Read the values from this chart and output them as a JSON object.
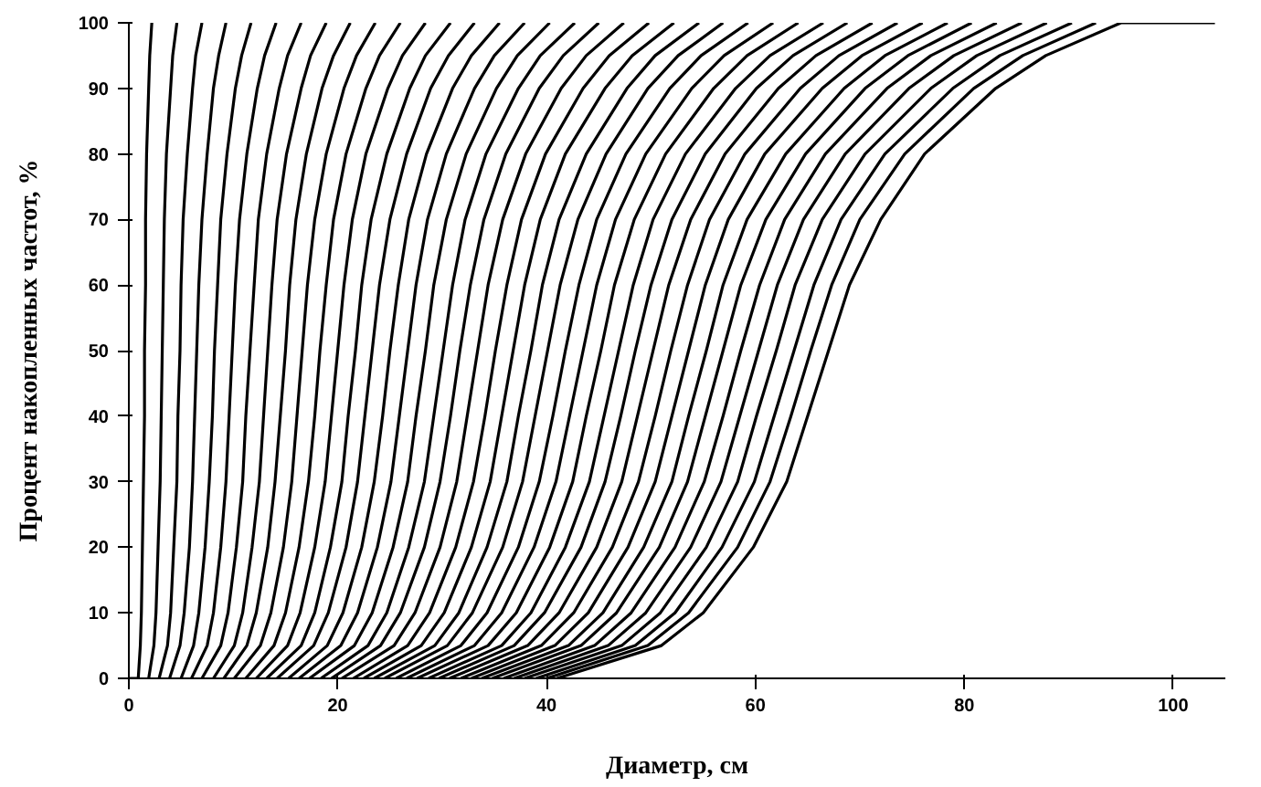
{
  "chart_data": {
    "type": "line",
    "xlabel": "Диаметр, см",
    "ylabel": "Процент накопленных частот, %",
    "xlim": [
      0,
      105
    ],
    "ylim": [
      0,
      100
    ],
    "xticks": [
      0,
      20,
      40,
      60,
      80,
      100
    ],
    "yticks": [
      0,
      10,
      20,
      30,
      40,
      50,
      60,
      70,
      80,
      90,
      100
    ],
    "grid": false,
    "marker": "none",
    "line_style": "solid",
    "series": [
      {
        "color": "#000000",
        "x": [
          0,
          0.9,
          1.1,
          1.2,
          1.3,
          1.4,
          1.5,
          1.5,
          1.6,
          1.6,
          1.7,
          1.9,
          2.0,
          2.2
        ],
        "values": [
          0,
          0,
          5,
          10,
          20,
          30,
          40,
          50,
          60,
          70,
          80,
          90,
          95,
          100
        ]
      },
      {
        "color": "#000000",
        "x": [
          1.9,
          2.4,
          2.6,
          2.8,
          3.0,
          3.1,
          3.2,
          3.3,
          3.4,
          3.6,
          4.0,
          4.2,
          4.6
        ],
        "values": [
          0,
          5,
          10,
          20,
          30,
          40,
          50,
          60,
          70,
          80,
          90,
          95,
          100
        ]
      },
      {
        "color": "#000000",
        "x": [
          2.9,
          3.7,
          4.0,
          4.3,
          4.6,
          4.7,
          4.9,
          5.0,
          5.2,
          5.6,
          6.1,
          6.4,
          7.0
        ],
        "values": [
          0,
          5,
          10,
          20,
          30,
          40,
          50,
          60,
          70,
          80,
          90,
          95,
          100
        ]
      },
      {
        "color": "#000000",
        "x": [
          3.9,
          4.9,
          5.3,
          5.8,
          6.1,
          6.3,
          6.5,
          6.7,
          7.0,
          7.5,
          8.1,
          8.6,
          9.3
        ],
        "values": [
          0,
          5,
          10,
          20,
          30,
          40,
          50,
          60,
          70,
          80,
          90,
          95,
          100
        ]
      },
      {
        "color": "#000000",
        "x": [
          5.0,
          6.2,
          6.7,
          7.3,
          7.7,
          8.0,
          8.2,
          8.5,
          8.8,
          9.4,
          10.2,
          10.8,
          11.7
        ],
        "values": [
          0,
          5,
          10,
          20,
          30,
          40,
          50,
          60,
          70,
          80,
          90,
          95,
          100
        ]
      },
      {
        "color": "#000000",
        "x": [
          6.0,
          7.5,
          8.1,
          8.8,
          9.3,
          9.6,
          9.9,
          10.2,
          10.6,
          11.3,
          12.3,
          13.0,
          14.1
        ],
        "values": [
          0,
          5,
          10,
          20,
          30,
          40,
          50,
          60,
          70,
          80,
          90,
          95,
          100
        ]
      },
      {
        "color": "#000000",
        "x": [
          7.0,
          8.8,
          9.5,
          10.3,
          10.9,
          11.2,
          11.6,
          12.0,
          12.4,
          13.2,
          14.4,
          15.2,
          16.5
        ],
        "values": [
          0,
          5,
          10,
          20,
          30,
          40,
          50,
          60,
          70,
          80,
          90,
          95,
          100
        ]
      },
      {
        "color": "#000000",
        "x": [
          8.1,
          10.1,
          10.9,
          11.8,
          12.5,
          12.9,
          13.3,
          13.7,
          14.2,
          15.1,
          16.5,
          17.4,
          18.9
        ],
        "values": [
          0,
          5,
          10,
          20,
          30,
          40,
          50,
          60,
          70,
          80,
          90,
          95,
          100
        ]
      },
      {
        "color": "#000000",
        "x": [
          9.1,
          11.3,
          12.2,
          13.3,
          14.0,
          14.5,
          15.0,
          15.4,
          16.0,
          17.0,
          18.5,
          19.6,
          21.2
        ],
        "values": [
          0,
          5,
          10,
          20,
          30,
          40,
          50,
          60,
          70,
          80,
          90,
          95,
          100
        ]
      },
      {
        "color": "#000000",
        "x": [
          10.1,
          12.6,
          13.6,
          14.8,
          15.6,
          16.1,
          16.6,
          17.1,
          17.8,
          18.9,
          20.6,
          21.8,
          23.6
        ],
        "values": [
          0,
          5,
          10,
          20,
          30,
          40,
          50,
          60,
          70,
          80,
          90,
          95,
          100
        ]
      },
      {
        "color": "#000000",
        "x": [
          11.2,
          13.9,
          15.0,
          16.3,
          17.2,
          17.8,
          18.3,
          18.9,
          19.6,
          20.8,
          22.7,
          24.0,
          26.0
        ],
        "values": [
          0,
          5,
          10,
          20,
          30,
          40,
          50,
          60,
          70,
          80,
          90,
          95,
          100
        ]
      },
      {
        "color": "#000000",
        "x": [
          12.2,
          15.2,
          16.4,
          17.8,
          18.8,
          19.4,
          20.0,
          20.6,
          21.4,
          22.7,
          24.8,
          26.2,
          28.4
        ],
        "values": [
          0,
          5,
          10,
          20,
          30,
          40,
          50,
          60,
          70,
          80,
          90,
          95,
          100
        ]
      },
      {
        "color": "#000000",
        "x": [
          13.2,
          16.5,
          17.8,
          19.3,
          20.4,
          21.0,
          21.7,
          22.3,
          23.2,
          24.7,
          26.9,
          28.4,
          30.8
        ],
        "values": [
          0,
          5,
          10,
          20,
          30,
          40,
          50,
          60,
          70,
          80,
          90,
          95,
          100
        ]
      },
      {
        "color": "#000000",
        "x": [
          14.2,
          17.7,
          19.1,
          20.8,
          21.9,
          22.6,
          23.3,
          24.0,
          25.0,
          26.6,
          28.9,
          30.6,
          33.1
        ],
        "values": [
          0,
          5,
          10,
          20,
          30,
          40,
          50,
          60,
          70,
          80,
          90,
          95,
          100
        ]
      },
      {
        "color": "#000000",
        "x": [
          15.3,
          19.0,
          20.5,
          22.3,
          23.5,
          24.3,
          25.0,
          25.8,
          26.8,
          28.5,
          31.0,
          32.8,
          35.5
        ],
        "values": [
          0,
          5,
          10,
          20,
          30,
          40,
          50,
          60,
          70,
          80,
          90,
          95,
          100
        ]
      },
      {
        "color": "#000000",
        "x": [
          16.3,
          20.3,
          21.9,
          23.8,
          25.1,
          25.9,
          26.7,
          27.5,
          28.6,
          30.4,
          33.1,
          35.0,
          37.9
        ],
        "values": [
          0,
          5,
          10,
          20,
          30,
          40,
          50,
          60,
          70,
          80,
          90,
          95,
          100
        ]
      },
      {
        "color": "#000000",
        "x": [
          17.3,
          21.6,
          23.3,
          25.3,
          26.7,
          27.5,
          28.4,
          29.2,
          30.4,
          32.3,
          35.2,
          37.2,
          40.3
        ],
        "values": [
          0,
          5,
          10,
          20,
          30,
          40,
          50,
          60,
          70,
          80,
          90,
          95,
          100
        ]
      },
      {
        "color": "#000000",
        "x": [
          18.4,
          22.9,
          24.7,
          26.8,
          28.3,
          29.2,
          30.1,
          31.0,
          32.2,
          34.2,
          37.3,
          39.4,
          42.7
        ],
        "values": [
          0,
          5,
          10,
          20,
          30,
          40,
          50,
          60,
          70,
          80,
          90,
          95,
          100
        ]
      },
      {
        "color": "#000000",
        "x": [
          19.4,
          24.1,
          26.0,
          28.3,
          29.8,
          30.8,
          31.7,
          32.7,
          34.0,
          36.1,
          39.3,
          41.6,
          45.0
        ],
        "values": [
          0,
          5,
          10,
          20,
          30,
          40,
          50,
          60,
          70,
          80,
          90,
          95,
          100
        ]
      },
      {
        "color": "#000000",
        "x": [
          20.4,
          25.4,
          27.4,
          29.8,
          31.4,
          32.4,
          33.4,
          34.4,
          35.8,
          38.0,
          41.4,
          43.8,
          47.4
        ],
        "values": [
          0,
          5,
          10,
          20,
          30,
          40,
          50,
          60,
          70,
          80,
          90,
          95,
          100
        ]
      },
      {
        "color": "#000000",
        "x": [
          21.5,
          26.7,
          28.8,
          31.3,
          33.0,
          34.1,
          35.1,
          36.2,
          37.6,
          39.9,
          43.5,
          46.0,
          49.8
        ],
        "values": [
          0,
          5,
          10,
          20,
          30,
          40,
          50,
          60,
          70,
          80,
          90,
          95,
          100
        ]
      },
      {
        "color": "#000000",
        "x": [
          22.5,
          28.0,
          30.2,
          32.8,
          34.6,
          35.7,
          36.8,
          37.9,
          39.4,
          41.8,
          45.6,
          48.2,
          52.2
        ],
        "values": [
          0,
          5,
          10,
          20,
          30,
          40,
          50,
          60,
          70,
          80,
          90,
          95,
          100
        ]
      },
      {
        "color": "#000000",
        "x": [
          23.5,
          29.3,
          31.6,
          34.3,
          36.2,
          37.3,
          38.5,
          39.6,
          41.2,
          43.8,
          47.7,
          50.4,
          54.6
        ],
        "values": [
          0,
          5,
          10,
          20,
          30,
          40,
          50,
          60,
          70,
          80,
          90,
          95,
          100
        ]
      },
      {
        "color": "#000000",
        "x": [
          24.5,
          30.5,
          32.9,
          35.8,
          37.7,
          38.9,
          40.1,
          41.3,
          43.0,
          45.7,
          49.7,
          52.6,
          56.9
        ],
        "values": [
          0,
          5,
          10,
          20,
          30,
          40,
          50,
          60,
          70,
          80,
          90,
          95,
          100
        ]
      },
      {
        "color": "#000000",
        "x": [
          25.6,
          31.8,
          34.3,
          37.3,
          39.3,
          40.6,
          41.8,
          43.1,
          44.8,
          47.6,
          51.8,
          54.8,
          59.3
        ],
        "values": [
          0,
          5,
          10,
          20,
          30,
          40,
          50,
          60,
          70,
          80,
          90,
          95,
          100
        ]
      },
      {
        "color": "#000000",
        "x": [
          26.6,
          33.1,
          35.7,
          38.8,
          40.9,
          42.2,
          43.5,
          44.8,
          46.6,
          49.5,
          53.9,
          57.0,
          61.7
        ],
        "values": [
          0,
          5,
          10,
          20,
          30,
          40,
          50,
          60,
          70,
          80,
          90,
          95,
          100
        ]
      },
      {
        "color": "#000000",
        "x": [
          27.6,
          34.4,
          37.1,
          40.3,
          42.5,
          43.8,
          45.2,
          46.5,
          48.4,
          51.4,
          56.0,
          59.2,
          64.1
        ],
        "values": [
          0,
          5,
          10,
          20,
          30,
          40,
          50,
          60,
          70,
          80,
          90,
          95,
          100
        ]
      },
      {
        "color": "#000000",
        "x": [
          28.7,
          35.7,
          38.5,
          41.8,
          44.1,
          45.5,
          46.9,
          48.3,
          50.2,
          53.3,
          58.1,
          61.4,
          66.5
        ],
        "values": [
          0,
          5,
          10,
          20,
          30,
          40,
          50,
          60,
          70,
          80,
          90,
          95,
          100
        ]
      },
      {
        "color": "#000000",
        "x": [
          29.7,
          36.9,
          39.8,
          43.3,
          45.6,
          47.1,
          48.5,
          50.0,
          52.0,
          55.2,
          60.1,
          63.6,
          68.8
        ],
        "values": [
          0,
          5,
          10,
          20,
          30,
          40,
          50,
          60,
          70,
          80,
          90,
          95,
          100
        ]
      },
      {
        "color": "#000000",
        "x": [
          30.7,
          38.2,
          41.2,
          44.8,
          47.2,
          48.7,
          50.2,
          51.7,
          53.8,
          57.1,
          62.2,
          65.8,
          71.2
        ],
        "values": [
          0,
          5,
          10,
          20,
          30,
          40,
          50,
          60,
          70,
          80,
          90,
          95,
          100
        ]
      },
      {
        "color": "#000000",
        "x": [
          31.8,
          39.5,
          42.6,
          46.3,
          48.8,
          50.4,
          51.9,
          53.5,
          55.6,
          59.0,
          64.3,
          68.0,
          73.6
        ],
        "values": [
          0,
          5,
          10,
          20,
          30,
          40,
          50,
          60,
          70,
          80,
          90,
          95,
          100
        ]
      },
      {
        "color": "#000000",
        "x": [
          32.8,
          40.8,
          44.0,
          47.8,
          50.4,
          52.0,
          53.6,
          55.2,
          57.4,
          60.9,
          66.4,
          70.2,
          76.0
        ],
        "values": [
          0,
          5,
          10,
          20,
          30,
          40,
          50,
          60,
          70,
          80,
          90,
          95,
          100
        ]
      },
      {
        "color": "#000000",
        "x": [
          33.8,
          42.1,
          45.4,
          49.3,
          52.0,
          53.6,
          55.3,
          56.9,
          59.2,
          62.9,
          68.5,
          72.4,
          78.4
        ],
        "values": [
          0,
          5,
          10,
          20,
          30,
          40,
          50,
          60,
          70,
          80,
          90,
          95,
          100
        ]
      },
      {
        "color": "#000000",
        "x": [
          34.8,
          43.3,
          46.7,
          50.8,
          53.5,
          55.2,
          56.9,
          58.6,
          61.0,
          64.8,
          70.5,
          74.6,
          80.7
        ],
        "values": [
          0,
          5,
          10,
          20,
          30,
          40,
          50,
          60,
          70,
          80,
          90,
          95,
          100
        ]
      },
      {
        "color": "#000000",
        "x": [
          35.9,
          44.6,
          48.1,
          52.3,
          55.1,
          56.9,
          58.6,
          60.4,
          62.8,
          66.7,
          72.6,
          76.8,
          83.1
        ],
        "values": [
          0,
          5,
          10,
          20,
          30,
          40,
          50,
          60,
          70,
          80,
          90,
          95,
          100
        ]
      },
      {
        "color": "#000000",
        "x": [
          36.9,
          45.9,
          49.5,
          53.8,
          56.7,
          58.5,
          60.3,
          62.1,
          64.6,
          68.6,
          74.7,
          79.0,
          85.5
        ],
        "values": [
          0,
          5,
          10,
          20,
          30,
          40,
          50,
          60,
          70,
          80,
          90,
          95,
          100
        ]
      },
      {
        "color": "#000000",
        "x": [
          37.9,
          47.2,
          50.9,
          55.3,
          58.3,
          60.1,
          62.0,
          63.8,
          66.4,
          70.5,
          76.8,
          81.2,
          87.9
        ],
        "values": [
          0,
          5,
          10,
          20,
          30,
          40,
          50,
          60,
          70,
          80,
          90,
          95,
          100
        ]
      },
      {
        "color": "#000000",
        "x": [
          39.0,
          48.5,
          52.3,
          56.8,
          59.9,
          61.8,
          63.7,
          65.6,
          68.2,
          72.4,
          78.9,
          83.4,
          90.3
        ],
        "values": [
          0,
          5,
          10,
          20,
          30,
          40,
          50,
          60,
          70,
          80,
          90,
          95,
          100
        ]
      },
      {
        "color": "#000000",
        "x": [
          40.0,
          49.7,
          53.6,
          58.3,
          61.4,
          63.4,
          65.3,
          67.3,
          70.0,
          74.3,
          80.9,
          85.6,
          92.6
        ],
        "values": [
          0,
          5,
          10,
          20,
          30,
          40,
          50,
          60,
          70,
          80,
          90,
          95,
          100
        ]
      },
      {
        "color": "#000000",
        "x": [
          41.0,
          51.0,
          55.0,
          59.8,
          63.0,
          65.0,
          67.0,
          69.0,
          72.0,
          76.2,
          83.0,
          87.8,
          95.0,
          104
        ],
        "values": [
          0,
          5,
          10,
          20,
          30,
          40,
          50,
          60,
          70,
          80,
          90,
          95,
          100,
          100
        ]
      }
    ]
  }
}
